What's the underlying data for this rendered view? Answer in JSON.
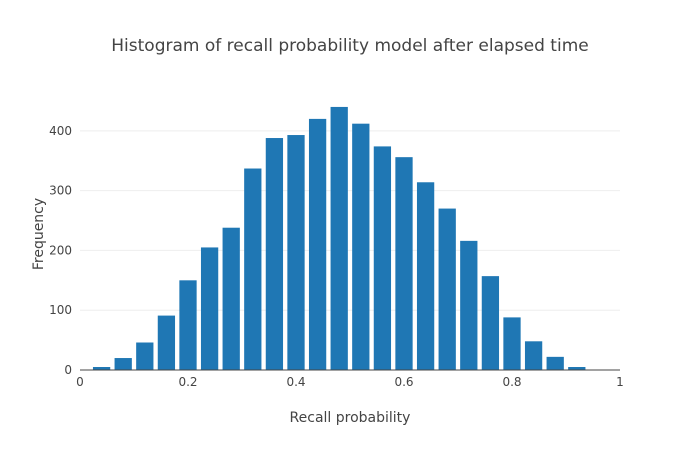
{
  "chart_data": {
    "type": "bar",
    "title": "Histogram of recall probability model after elapsed time",
    "xlabel": "Recall probability",
    "ylabel": "Frequency",
    "xlim": [
      0,
      1
    ],
    "ylim": [
      0,
      470
    ],
    "x_ticks": [
      0,
      0.2,
      0.4,
      0.6,
      0.8,
      1
    ],
    "x_tick_labels": [
      "0",
      "0.2",
      "0.4",
      "0.6",
      "0.8",
      "1"
    ],
    "y_ticks": [
      0,
      100,
      200,
      300,
      400
    ],
    "y_tick_labels": [
      "0",
      "100",
      "200",
      "300",
      "400"
    ],
    "bin_width": 0.04,
    "x": [
      0.04,
      0.08,
      0.12,
      0.16,
      0.2,
      0.24,
      0.28,
      0.32,
      0.36,
      0.4,
      0.44,
      0.48,
      0.52,
      0.56,
      0.6,
      0.64,
      0.68,
      0.72,
      0.76,
      0.8,
      0.84,
      0.88,
      0.92
    ],
    "values": [
      5,
      20,
      46,
      91,
      150,
      205,
      238,
      337,
      388,
      393,
      420,
      440,
      412,
      374,
      356,
      314,
      270,
      216,
      157,
      88,
      48,
      22,
      5
    ],
    "grid": true,
    "bar_color": "#1f77b4"
  }
}
